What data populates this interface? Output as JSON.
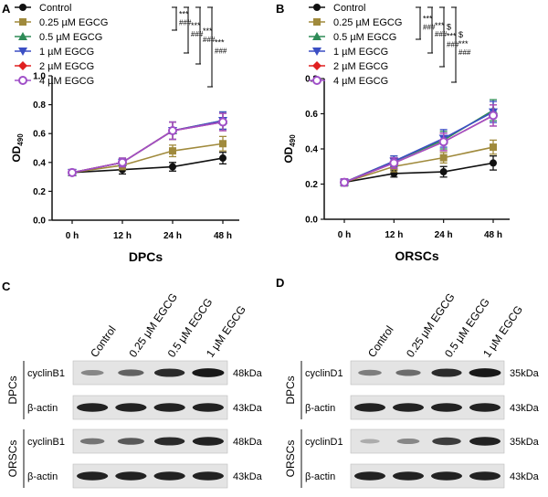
{
  "panels": {
    "a": "A",
    "b": "B",
    "c": "C",
    "d": "D"
  },
  "colors": {
    "Control": "#111111",
    "0.25 µM EGCG": "#a08a3c",
    "0.5 µM EGCG": "#2e8b57",
    "1 µM EGCG": "#3b4fc4",
    "2 µM EGCG": "#e02020",
    "4 µM EGCG": "#a050c8"
  },
  "chart_data": [
    {
      "id": "A",
      "type": "line",
      "xlabel": "DPCs",
      "ylabel": "OD",
      "ylabel_sub": "490",
      "categories": [
        "0 h",
        "12 h",
        "24 h",
        "48 h"
      ],
      "ylim": [
        0,
        1.0
      ],
      "yticks": [
        "0.0",
        "0.2",
        "0.4",
        "0.6",
        "0.8",
        "1.0"
      ],
      "series": [
        {
          "name": "Control",
          "marker": "circle",
          "values": [
            0.33,
            0.35,
            0.37,
            0.43
          ],
          "errors": [
            0.02,
            0.03,
            0.03,
            0.04
          ]
        },
        {
          "name": "0.25 µM EGCG",
          "marker": "square",
          "values": [
            0.33,
            0.38,
            0.48,
            0.53
          ],
          "errors": [
            0.02,
            0.03,
            0.04,
            0.05
          ]
        },
        {
          "name": "0.5 µM EGCG",
          "marker": "triangle-up",
          "values": [
            0.33,
            0.4,
            0.62,
            0.69
          ],
          "errors": [
            0.02,
            0.03,
            0.06,
            0.06
          ]
        },
        {
          "name": "1 µM EGCG",
          "marker": "triangle-down",
          "values": [
            0.33,
            0.4,
            0.62,
            0.69
          ],
          "errors": [
            0.02,
            0.03,
            0.06,
            0.06
          ]
        },
        {
          "name": "2 µM EGCG",
          "marker": "diamond",
          "values": [
            0.33,
            0.4,
            0.62,
            0.68
          ],
          "errors": [
            0.02,
            0.03,
            0.06,
            0.06
          ]
        },
        {
          "name": "4 µM EGCG",
          "marker": "circle-open",
          "values": [
            0.33,
            0.4,
            0.62,
            0.68
          ],
          "errors": [
            0.02,
            0.03,
            0.06,
            0.06
          ]
        }
      ],
      "significance": [
        {
          "stars": "***",
          "hash": "###"
        },
        {
          "stars": "***",
          "hash": "###"
        },
        {
          "stars": "***",
          "hash": "###"
        },
        {
          "stars": "***",
          "hash": "###"
        }
      ]
    },
    {
      "id": "B",
      "type": "line",
      "xlabel": "ORSCs",
      "ylabel": "OD",
      "ylabel_sub": "490",
      "categories": [
        "0 h",
        "12 h",
        "24 h",
        "48 h"
      ],
      "ylim": [
        0,
        0.8
      ],
      "yticks": [
        "0.0",
        "0.2",
        "0.4",
        "0.6",
        "0.8"
      ],
      "series": [
        {
          "name": "Control",
          "marker": "circle",
          "values": [
            0.21,
            0.26,
            0.27,
            0.32
          ],
          "errors": [
            0.02,
            0.02,
            0.03,
            0.04
          ]
        },
        {
          "name": "0.25 µM EGCG",
          "marker": "square",
          "values": [
            0.21,
            0.3,
            0.35,
            0.41
          ],
          "errors": [
            0.02,
            0.03,
            0.03,
            0.04
          ]
        },
        {
          "name": "0.5 µM EGCG",
          "marker": "triangle-up",
          "values": [
            0.21,
            0.33,
            0.45,
            0.62
          ],
          "errors": [
            0.02,
            0.03,
            0.05,
            0.06
          ]
        },
        {
          "name": "1 µM EGCG",
          "marker": "triangle-down",
          "values": [
            0.21,
            0.33,
            0.46,
            0.61
          ],
          "errors": [
            0.02,
            0.03,
            0.05,
            0.06
          ]
        },
        {
          "name": "2 µM EGCG",
          "marker": "diamond",
          "values": [
            0.21,
            0.32,
            0.44,
            0.59
          ],
          "errors": [
            0.02,
            0.03,
            0.05,
            0.06
          ]
        },
        {
          "name": "4 µM EGCG",
          "marker": "circle-open",
          "values": [
            0.21,
            0.32,
            0.44,
            0.59
          ],
          "errors": [
            0.02,
            0.03,
            0.05,
            0.06
          ]
        }
      ],
      "significance": [
        {
          "stars": "***",
          "hash": "###"
        },
        {
          "stars": "***",
          "hash": "###"
        },
        {
          "dollar": "$",
          "stars": "***",
          "hash": "###"
        },
        {
          "dollar": "$",
          "stars": "***",
          "hash": "###"
        }
      ]
    }
  ],
  "blots": [
    {
      "id": "C",
      "columns": [
        "Control",
        "0.25 μM EGCG",
        "0.5 μM EGCG",
        "1 μM EGCG"
      ],
      "groups": [
        {
          "label": "DPCs",
          "rows": [
            {
              "protein": "cyclinB1",
              "size": "48kDa",
              "intensity": [
                0.35,
                0.55,
                0.85,
                0.95
              ]
            },
            {
              "protein": "β-actin",
              "size": "43kDa",
              "intensity": [
                0.9,
                0.9,
                0.9,
                0.9
              ]
            }
          ]
        },
        {
          "label": "ORSCs",
          "rows": [
            {
              "protein": "cyclinB1",
              "size": "48kDa",
              "intensity": [
                0.45,
                0.6,
                0.85,
                0.9
              ]
            },
            {
              "protein": "β-actin",
              "size": "43kDa",
              "intensity": [
                0.9,
                0.9,
                0.9,
                0.9
              ]
            }
          ]
        }
      ]
    },
    {
      "id": "D",
      "columns": [
        "Control",
        "0.25 μM EGCG",
        "0.5 μM EGCG",
        "1 μM EGCG"
      ],
      "groups": [
        {
          "label": "DPCs",
          "rows": [
            {
              "protein": "cyclinD1",
              "size": "35kDa",
              "intensity": [
                0.4,
                0.5,
                0.85,
                0.95
              ]
            },
            {
              "protein": "β-actin",
              "size": "43kDa",
              "intensity": [
                0.9,
                0.9,
                0.9,
                0.9
              ]
            }
          ]
        },
        {
          "label": "ORSCs",
          "rows": [
            {
              "protein": "cyclinD1",
              "size": "35kDa",
              "intensity": [
                0.15,
                0.35,
                0.75,
                0.9
              ]
            },
            {
              "protein": "β-actin",
              "size": "43kDa",
              "intensity": [
                0.9,
                0.9,
                0.9,
                0.9
              ]
            }
          ]
        }
      ]
    }
  ]
}
